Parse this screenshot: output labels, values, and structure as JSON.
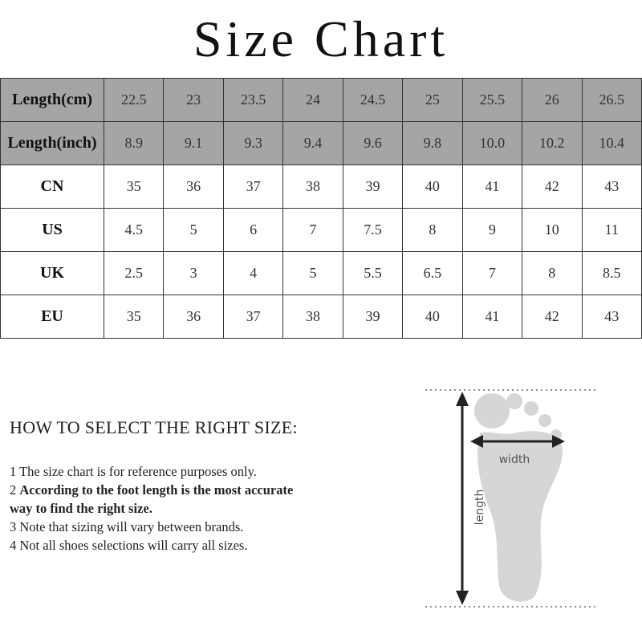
{
  "title": "Size Chart",
  "table": {
    "rows": [
      [
        "Length(cm)",
        "22.5",
        "23",
        "23.5",
        "24",
        "24.5",
        "25",
        "25.5",
        "26",
        "26.5"
      ],
      [
        "Length(inch)",
        "8.9",
        "9.1",
        "9.3",
        "9.4",
        "9.6",
        "9.8",
        "10.0",
        "10.2",
        "10.4"
      ],
      [
        "CN",
        "35",
        "36",
        "37",
        "38",
        "39",
        "40",
        "41",
        "42",
        "43"
      ],
      [
        "US",
        "4.5",
        "5",
        "6",
        "7",
        "7.5",
        "8",
        "9",
        "10",
        "11"
      ],
      [
        "UK",
        "2.5",
        "3",
        "4",
        "5",
        "5.5",
        "6.5",
        "7",
        "8",
        "8.5"
      ],
      [
        "EU",
        "35",
        "36",
        "37",
        "38",
        "39",
        "40",
        "41",
        "42",
        "43"
      ]
    ]
  },
  "guide": {
    "heading": "HOW TO SELECT THE RIGHT SIZE:",
    "items": [
      {
        "number": "1",
        "text": "The size chart is for reference purposes only."
      },
      {
        "number": "2",
        "text": "According to the foot length is the most accurate way to find the right size.",
        "bold": true
      },
      {
        "number": "3",
        "text": "Note that sizing will vary between brands."
      },
      {
        "number": "4",
        "text": "Not all shoes selections will carry all sizes."
      }
    ]
  },
  "diagram": {
    "width_label": "width",
    "length_label": "length"
  }
}
